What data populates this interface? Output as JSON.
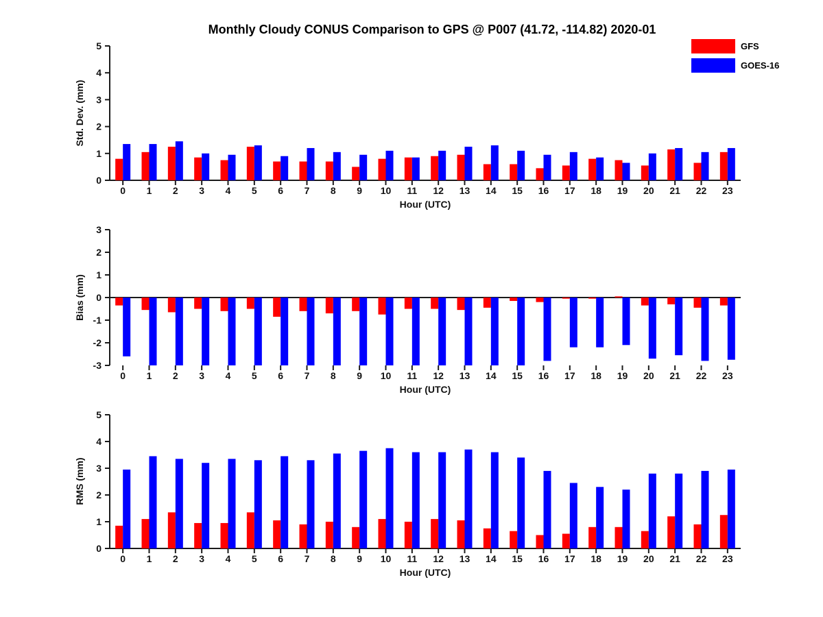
{
  "title": "Monthly Cloudy CONUS Comparison to GPS @ P007 (41.72, -114.82) 2020-01",
  "legend": {
    "items": [
      {
        "label": "GFS",
        "color": "#ff0000"
      },
      {
        "label": "GOES-16",
        "color": "#0000ff"
      }
    ]
  },
  "chart_data": [
    {
      "type": "bar",
      "ylabel": "Std. Dev. (mm)",
      "xlabel": "Hour (UTC)",
      "ylim": [
        0,
        5
      ],
      "yticks": [
        0,
        1,
        2,
        3,
        4,
        5
      ],
      "categories": [
        "0",
        "1",
        "2",
        "3",
        "4",
        "5",
        "6",
        "7",
        "8",
        "9",
        "10",
        "11",
        "12",
        "13",
        "14",
        "15",
        "16",
        "17",
        "18",
        "19",
        "20",
        "21",
        "22",
        "23"
      ],
      "series": [
        {
          "name": "GFS",
          "color": "#ff0000",
          "values": [
            0.8,
            1.05,
            1.25,
            0.85,
            0.75,
            1.25,
            0.7,
            0.7,
            0.7,
            0.5,
            0.8,
            0.85,
            0.9,
            0.95,
            0.6,
            0.6,
            0.45,
            0.55,
            0.8,
            0.75,
            0.55,
            1.15,
            0.65,
            1.05
          ]
        },
        {
          "name": "GOES-16",
          "color": "#0000ff",
          "values": [
            1.35,
            1.35,
            1.45,
            1.0,
            0.95,
            1.3,
            0.9,
            1.2,
            1.05,
            0.95,
            1.1,
            0.85,
            1.1,
            1.25,
            1.3,
            1.1,
            0.95,
            1.05,
            0.85,
            0.65,
            1.0,
            1.2,
            1.05,
            1.2
          ]
        }
      ]
    },
    {
      "type": "bar",
      "ylabel": "Bias (mm)",
      "xlabel": "Hour (UTC)",
      "ylim": [
        -3,
        3
      ],
      "yticks": [
        -3,
        -2,
        -1,
        0,
        1,
        2,
        3
      ],
      "categories": [
        "0",
        "1",
        "2",
        "3",
        "4",
        "5",
        "6",
        "7",
        "8",
        "9",
        "10",
        "11",
        "12",
        "13",
        "14",
        "15",
        "16",
        "17",
        "18",
        "19",
        "20",
        "21",
        "22",
        "23"
      ],
      "series": [
        {
          "name": "GFS",
          "color": "#ff0000",
          "values": [
            -0.35,
            -0.55,
            -0.65,
            -0.5,
            -0.6,
            -0.5,
            -0.85,
            -0.6,
            -0.7,
            -0.6,
            -0.75,
            -0.5,
            -0.5,
            -0.55,
            -0.45,
            -0.15,
            -0.2,
            -0.05,
            -0.05,
            0.05,
            -0.35,
            -0.3,
            -0.45,
            -0.35
          ]
        },
        {
          "name": "GOES-16",
          "color": "#0000ff",
          "values": [
            -2.6,
            -3.0,
            -3.0,
            -3.0,
            -3.0,
            -3.0,
            -3.0,
            -3.0,
            -3.0,
            -3.0,
            -3.0,
            -3.0,
            -3.0,
            -3.0,
            -3.0,
            -3.0,
            -2.8,
            -2.2,
            -2.2,
            -2.1,
            -2.7,
            -2.55,
            -2.8,
            -2.75
          ]
        }
      ]
    },
    {
      "type": "bar",
      "ylabel": "RMS (mm)",
      "xlabel": "Hour (UTC)",
      "ylim": [
        0,
        5
      ],
      "yticks": [
        0,
        1,
        2,
        3,
        4,
        5
      ],
      "categories": [
        "0",
        "1",
        "2",
        "3",
        "4",
        "5",
        "6",
        "7",
        "8",
        "9",
        "10",
        "11",
        "12",
        "13",
        "14",
        "15",
        "16",
        "17",
        "18",
        "19",
        "20",
        "21",
        "22",
        "23"
      ],
      "series": [
        {
          "name": "GFS",
          "color": "#ff0000",
          "values": [
            0.85,
            1.1,
            1.35,
            0.95,
            0.95,
            1.35,
            1.05,
            0.9,
            1.0,
            0.8,
            1.1,
            1.0,
            1.1,
            1.05,
            0.75,
            0.65,
            0.5,
            0.55,
            0.8,
            0.8,
            0.65,
            1.2,
            0.9,
            1.25
          ]
        },
        {
          "name": "GOES-16",
          "color": "#0000ff",
          "values": [
            2.95,
            3.45,
            3.35,
            3.2,
            3.35,
            3.3,
            3.45,
            3.3,
            3.55,
            3.65,
            3.75,
            3.6,
            3.6,
            3.7,
            3.6,
            3.4,
            2.9,
            2.45,
            2.3,
            2.2,
            2.8,
            2.8,
            2.9,
            2.95
          ]
        }
      ]
    }
  ]
}
